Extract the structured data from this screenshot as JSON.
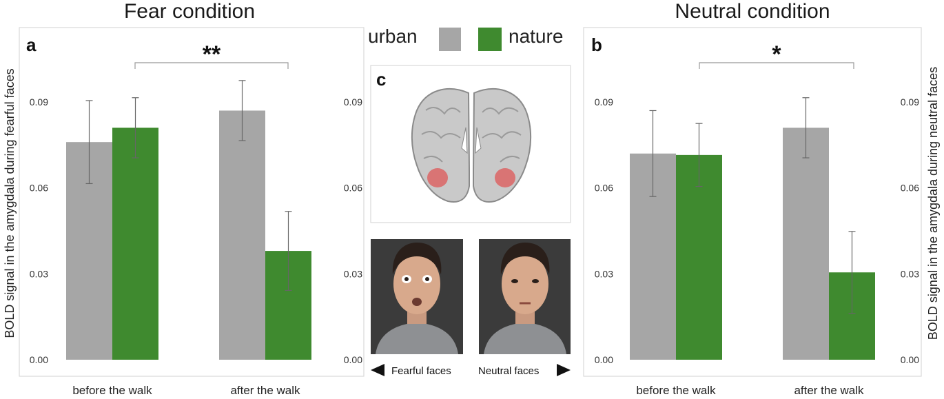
{
  "colors": {
    "urban": "#a6a6a6",
    "nature": "#3f8a2f",
    "highlight": "#e05050"
  },
  "legend": {
    "urban_label": "urban",
    "nature_label": "nature"
  },
  "chart_data": [
    {
      "type": "bar",
      "panel": "a",
      "title": "Fear condition",
      "ylabel": "BOLD signal in the amygdala during fearful faces",
      "categories": [
        "before the walk",
        "after the walk"
      ],
      "series": [
        {
          "name": "urban",
          "values": [
            0.076,
            0.087
          ],
          "error": [
            0.0145,
            0.0105
          ]
        },
        {
          "name": "nature",
          "values": [
            0.081,
            0.038
          ],
          "error": [
            0.0105,
            0.0138
          ]
        }
      ],
      "ylim": [
        0,
        0.1
      ],
      "yticks": [
        "0.00",
        "0.03",
        "0.06",
        "0.09"
      ],
      "yticks_values": [
        0,
        0.03,
        0.06,
        0.09
      ],
      "significance": "**",
      "grid": false
    },
    {
      "type": "bar",
      "panel": "b",
      "title": "Neutral condition",
      "ylabel": "BOLD signal in the amygdala during neutral faces",
      "categories": [
        "before the walk",
        "after the walk"
      ],
      "series": [
        {
          "name": "urban",
          "values": [
            0.072,
            0.081
          ],
          "error": [
            0.015,
            0.0105
          ]
        },
        {
          "name": "nature",
          "values": [
            0.0715,
            0.0305
          ],
          "error": [
            0.011,
            0.0143
          ]
        }
      ],
      "ylim": [
        0,
        0.1
      ],
      "yticks": [
        "0.00",
        "0.03",
        "0.06",
        "0.09"
      ],
      "yticks_values": [
        0,
        0.03,
        0.06,
        0.09
      ],
      "significance": "*",
      "grid": false
    }
  ],
  "middle": {
    "panel_letter": "c",
    "yticks": [
      "0.00",
      "0.03",
      "0.06",
      "0.09"
    ],
    "fearful_caption": "Fearful faces",
    "neutral_caption": "Neutral faces",
    "left_arrow_icon": "left-arrow-icon",
    "right_arrow_icon": "right-arrow-icon",
    "brain_icon": "brain-coronal-section-icon",
    "fearful_face_icon": "fearful-face-photo-icon",
    "neutral_face_icon": "neutral-face-photo-icon"
  }
}
